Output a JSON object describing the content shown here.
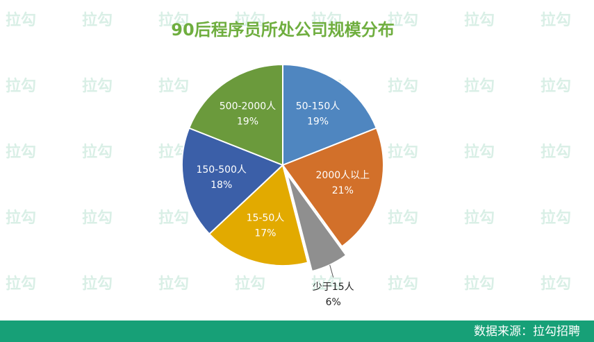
{
  "chart_data": {
    "type": "pie",
    "title": "90后程序员所处公司规模分布",
    "categories": [
      "50-150人",
      "2000人以上",
      "少于15人",
      "15-50人",
      "150-500人",
      "500-2000人"
    ],
    "values": [
      19,
      21,
      6,
      17,
      18,
      19
    ],
    "value_labels": [
      "19%",
      "21%",
      "6%",
      "17%",
      "18%",
      "19%"
    ],
    "colors": [
      "#4f86c0",
      "#d2702a",
      "#8f8f8f",
      "#e2aa00",
      "#3b5fa8",
      "#6b9a3c"
    ],
    "exploded": [
      2
    ],
    "source": "数据来源：拉勾招聘",
    "watermark": "拉勾"
  }
}
